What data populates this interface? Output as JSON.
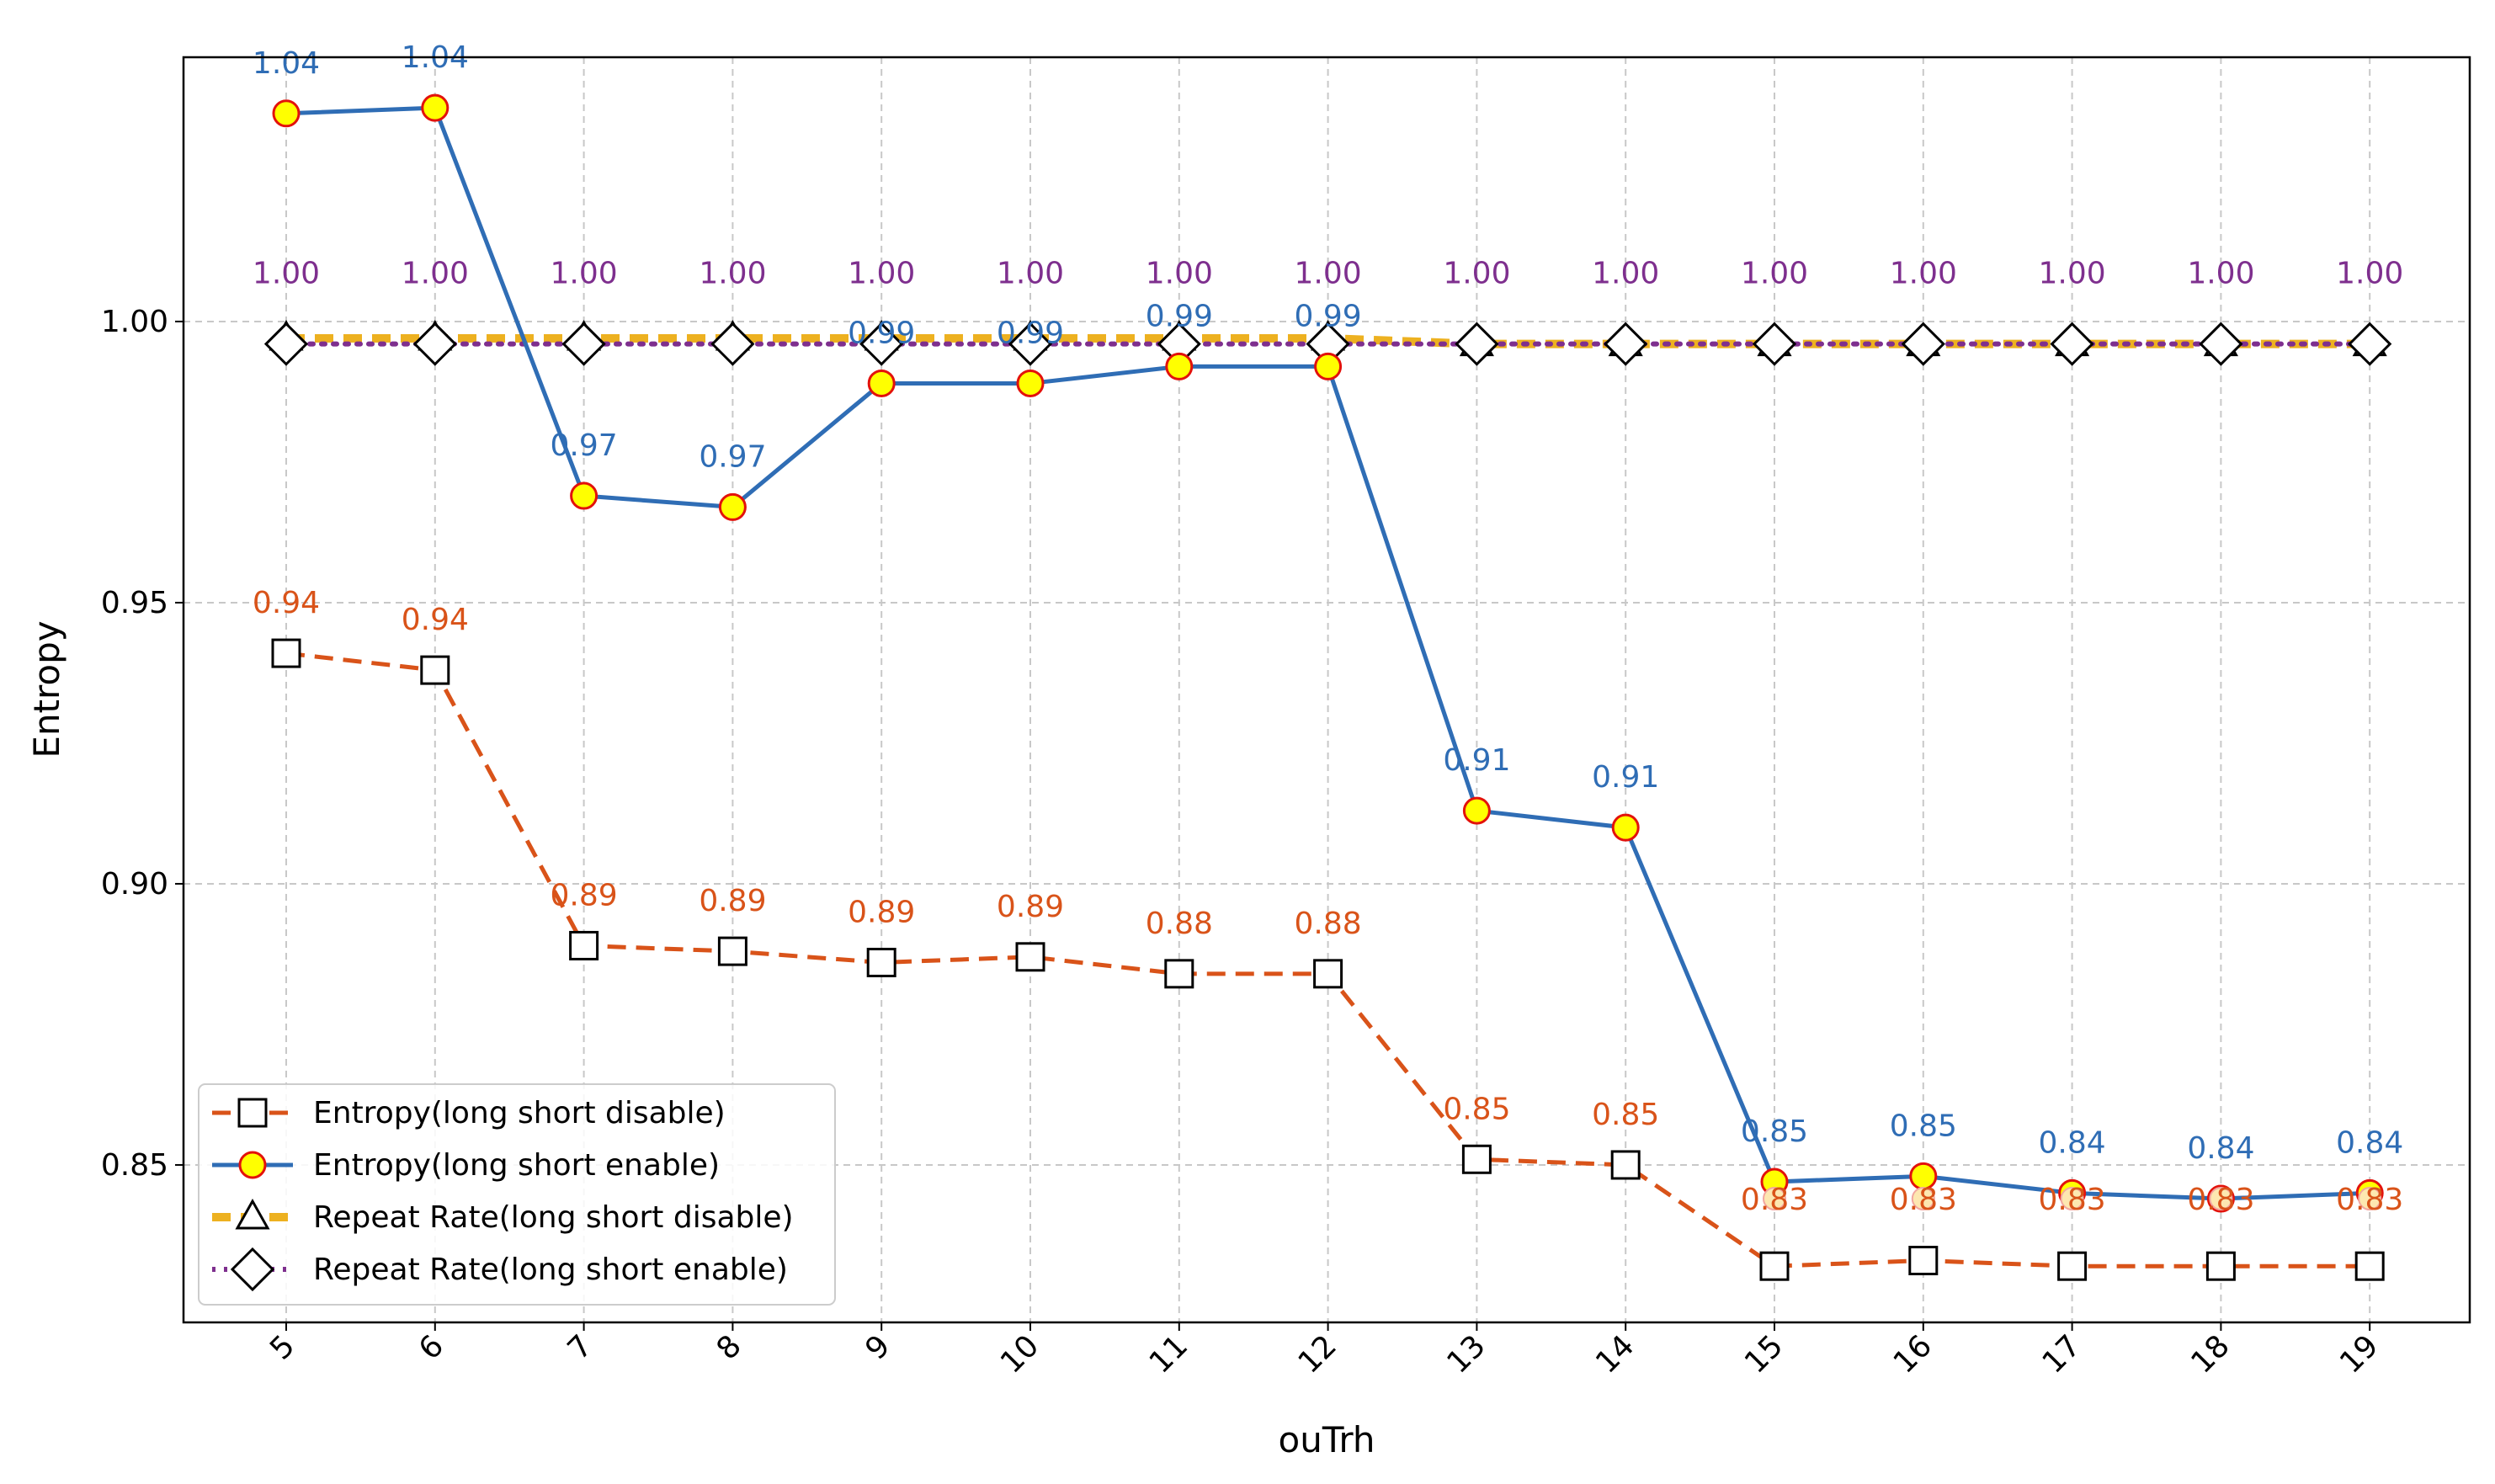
{
  "chart_data": {
    "type": "line",
    "title": "",
    "xlabel": "ouTrh",
    "ylabel": "Entropy",
    "x": [
      5,
      6,
      7,
      8,
      9,
      10,
      11,
      12,
      13,
      14,
      15,
      16,
      17,
      18,
      19
    ],
    "x_tick_labels": [
      "5",
      "6",
      "7",
      "8",
      "9",
      "10",
      "11",
      "12",
      "13",
      "14",
      "15",
      "16",
      "17",
      "18",
      "19"
    ],
    "ylim": [
      0.822,
      1.047
    ],
    "y_ticks": [
      0.85,
      0.9,
      0.95,
      1.0
    ],
    "y_tick_labels": [
      "0.85",
      "0.90",
      "0.95",
      "1.00"
    ],
    "grid": true,
    "legend_position": "lower-left",
    "series": [
      {
        "name": "Entropy(long short disable)",
        "values": [
          0.941,
          0.938,
          0.889,
          0.888,
          0.886,
          0.887,
          0.884,
          0.884,
          0.851,
          0.85,
          0.832,
          0.833,
          0.832,
          0.832,
          0.832
        ],
        "labels": [
          "0.94",
          "0.94",
          "0.89",
          "0.89",
          "0.89",
          "0.89",
          "0.88",
          "0.88",
          "0.85",
          "0.85",
          "",
          "",
          "",
          "",
          ""
        ],
        "color": "#d95319",
        "line_style": "dashed",
        "marker": "square"
      },
      {
        "name": "Entropy(long short enable)",
        "values": [
          1.037,
          1.038,
          0.969,
          0.967,
          0.989,
          0.989,
          0.992,
          0.992,
          0.913,
          0.91,
          0.847,
          0.848,
          0.845,
          0.844,
          0.845
        ],
        "labels": [
          "1.04",
          "1.04",
          "0.97",
          "0.97",
          "0.99",
          "0.99",
          "0.99",
          "0.99",
          "0.91",
          "0.91",
          "0.85",
          "0.85",
          "0.84",
          "0.84",
          "0.84"
        ],
        "color": "#2f6db5",
        "line_style": "solid",
        "marker": "circle"
      },
      {
        "name": "Repeat Rate(long short disable)",
        "values": [
          0.997,
          0.997,
          0.997,
          0.997,
          0.997,
          0.997,
          0.997,
          0.997,
          0.996,
          0.996,
          0.996,
          0.996,
          0.996,
          0.996,
          0.996
        ],
        "labels": [],
        "color": "#edb120",
        "line_style": "dashed",
        "marker": "triangle"
      },
      {
        "name": "Repeat Rate(long short enable)",
        "values": [
          0.996,
          0.996,
          0.996,
          0.996,
          0.996,
          0.996,
          0.996,
          0.996,
          0.996,
          0.996,
          0.996,
          0.996,
          0.996,
          0.996,
          0.996
        ],
        "labels": [
          "1.00",
          "1.00",
          "1.00",
          "1.00",
          "1.00",
          "1.00",
          "1.00",
          "1.00",
          "1.00",
          "1.00",
          "1.00",
          "1.00",
          "1.00",
          "1.00",
          "1.00"
        ],
        "color": "#7e2f8e",
        "line_style": "dotted",
        "marker": "diamond"
      }
    ],
    "overlay_labels": {
      "values": [
        0.844,
        0.844,
        0.844,
        0.844,
        0.844
      ],
      "x": [
        15,
        16,
        17,
        18,
        19
      ],
      "labels": [
        "0.83",
        "0.83",
        "0.83",
        "0.83",
        "0.83"
      ],
      "color": "#d95319"
    }
  }
}
